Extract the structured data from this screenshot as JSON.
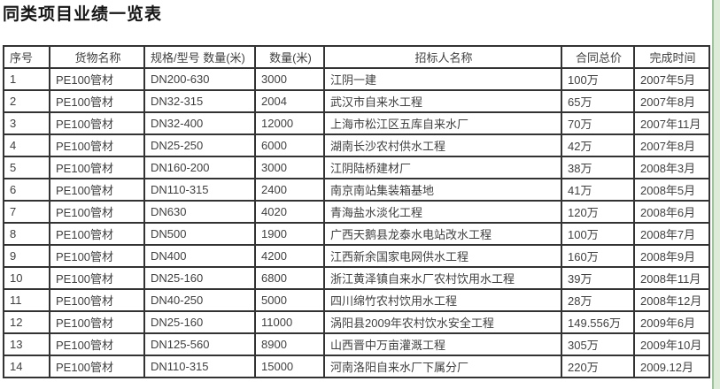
{
  "page": {
    "title": "同类项目业绩一览表",
    "colors": {
      "border": "#333333",
      "text": "#404040",
      "edge_strip_fill": "#ddecd9",
      "edge_strip_line": "#9fc39b",
      "background": "#ffffff"
    }
  },
  "table": {
    "columns": [
      "序号",
      "货物名称",
      "规格/型号 数量(米)",
      "数量(米)",
      "招标人名称",
      "合同总价",
      "完成时间"
    ],
    "rows": [
      [
        "1",
        "PE100管材",
        "DN200-630",
        "3000",
        "江阴一建",
        "100万",
        "2007年5月"
      ],
      [
        "2",
        "PE100管材",
        "DN32-315",
        "2004",
        "武汉市自来水工程",
        "65万",
        "2007年8月"
      ],
      [
        "3",
        "PE100管材",
        "DN32-400",
        "12000",
        "上海市松江区五库自来水厂",
        "70万",
        "2007年11月"
      ],
      [
        "4",
        "PE100管材",
        "DN25-250",
        "6000",
        "湖南长沙农村供水工程",
        "42万",
        "2007年8月"
      ],
      [
        "5",
        "PE100管材",
        "DN160-200",
        "3000",
        "江阴陆桥建材厂",
        "38万",
        "2008年3月"
      ],
      [
        "6",
        "PE100管材",
        "DN110-315",
        "2400",
        "南京南站集装箱基地",
        "41万",
        "2008年5月"
      ],
      [
        "7",
        "PE100管材",
        "DN630",
        "4020",
        "青海盐水淡化工程",
        "120万",
        "2008年6月"
      ],
      [
        "8",
        "PE100管材",
        "DN500",
        "1900",
        "广西天鹅县龙泰水电站改水工程",
        "100万",
        "2008年7月"
      ],
      [
        "9",
        "PE100管材",
        "DN400",
        "4200",
        "江西新余国家电网供水工程",
        "160万",
        "2008年9月"
      ],
      [
        "10",
        "PE100管材",
        "DN25-160",
        "6800",
        "浙江黄泽镇自来水厂农村饮用水工程",
        "39万",
        "2008年11月"
      ],
      [
        "11",
        "PE100管材",
        "DN40-250",
        "5000",
        "四川绵竹农村饮用水工程",
        "28万",
        "2008年12月"
      ],
      [
        "12",
        "PE100管材",
        "DN25-160",
        "11000",
        "涡阳县2009年农村饮水安全工程",
        "149.556万",
        "2009年6月"
      ],
      [
        "13",
        "PE100管材",
        "DN125-560",
        "8900",
        "山西晋中万亩灌溉工程",
        "305万",
        "2009年10月"
      ],
      [
        "14",
        "PE100管材",
        "DN110-315",
        "15000",
        "河南洛阳自来水厂下属分厂",
        "220万",
        "2009.12月"
      ]
    ]
  }
}
